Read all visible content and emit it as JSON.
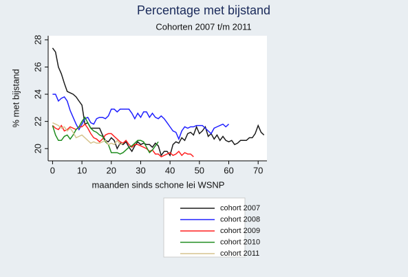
{
  "chart_data": {
    "type": "line",
    "title": "Percentage met bijstand",
    "subtitle": "Cohorten 2007 t/m 2011",
    "x_label": "maanden sinds schone lei WSNP",
    "y_label": "% met bijstand",
    "x": [
      0,
      1,
      2,
      3,
      4,
      5,
      6,
      7,
      8,
      9,
      10,
      11,
      12,
      13,
      14,
      15,
      16,
      17,
      18,
      19,
      20,
      21,
      22,
      23,
      24,
      25,
      26,
      27,
      28,
      29,
      30,
      31,
      32,
      33,
      34,
      35,
      36,
      37,
      38,
      39,
      40,
      41,
      42,
      43,
      44,
      45,
      46,
      47,
      48,
      49,
      50,
      51,
      52,
      53,
      54,
      55,
      56,
      57,
      58,
      59,
      60,
      61,
      62,
      63,
      64,
      65,
      66,
      67,
      68,
      69,
      70,
      71,
      72
    ],
    "xlim": [
      -1.5,
      73
    ],
    "xticks": [
      0,
      10,
      20,
      30,
      40,
      50,
      60,
      70
    ],
    "ylim": [
      19.1,
      28.3
    ],
    "yticks": [
      20,
      22,
      24,
      26,
      28
    ],
    "legend": "bottom",
    "series": [
      {
        "name": "cohort 2007",
        "color": "#1a1a1a",
        "values": [
          27.4,
          27.1,
          26,
          25.5,
          24.8,
          24.2,
          24.1,
          24,
          23.8,
          23.5,
          23.2,
          21.8,
          21.9,
          21.5,
          21.5,
          21.5,
          21.5,
          21,
          20.6,
          20.5,
          20.8,
          20.6,
          20,
          20.4,
          20.3,
          20.5,
          20.1,
          19.8,
          20.2,
          20.5,
          20.3,
          20.4,
          20.3,
          20.3,
          20.1,
          20.4,
          20.2,
          19.5,
          19.8,
          19.8,
          19.5,
          20.3,
          20.5,
          20.4,
          20.8,
          20.6,
          21.1,
          21.2,
          21,
          21.6,
          21.1,
          21.3,
          21.6,
          20.9,
          21.1,
          20.7,
          21,
          20.6,
          20.9,
          20.6,
          20.5,
          20.6,
          20.3,
          20.4,
          20.6,
          20.6,
          20.6,
          20.8,
          20.8,
          21.1,
          21.7,
          21.2,
          21
        ]
      },
      {
        "name": "cohort 2008",
        "color": "#1f1fff",
        "values": [
          24,
          24,
          23.5,
          23.7,
          23.8,
          23.5,
          22.8,
          22.3,
          21.8,
          21.4,
          21.8,
          22.2,
          22.3,
          21.9,
          21.8,
          22.2,
          22.3,
          22.3,
          22.2,
          22.4,
          22.9,
          22.9,
          22.7,
          22.9,
          22.9,
          22.9,
          22.9,
          22.6,
          22.2,
          22.6,
          22.3,
          22.7,
          22.7,
          22.3,
          22.6,
          22.3,
          22.2,
          22.4,
          22.2,
          21.9,
          21.6,
          21.3,
          21.2,
          20.7,
          21.3,
          21.6,
          21.5,
          21.6,
          21.6,
          21.7,
          21.7,
          21.7,
          21.5,
          21.3,
          21.1,
          21.5,
          21.6,
          21.7,
          21.8,
          21.6,
          21.8,
          null,
          null,
          null,
          null,
          null,
          null,
          null,
          null,
          null,
          null,
          null,
          null
        ]
      },
      {
        "name": "cohort 2009",
        "color": "#ff1f1f",
        "values": [
          21.7,
          21.5,
          21.4,
          21.7,
          21.3,
          21.4,
          21.6,
          21.5,
          21.4,
          21.6,
          21.6,
          21.8,
          21.5,
          21.1,
          20.8,
          20.7,
          20.5,
          20.7,
          21,
          21.1,
          21.1,
          20.9,
          20.7,
          20.5,
          20.4,
          20.6,
          20.3,
          20.1,
          20.3,
          20.3,
          20.2,
          20.1,
          20,
          19.8,
          19.9,
          19.6,
          19.6,
          19.4,
          19.5,
          19.6,
          19.7,
          19.5,
          19.6,
          19.8,
          19.5,
          19.7,
          19.6,
          19.6,
          19.4,
          null,
          null,
          null,
          null,
          null,
          null,
          null,
          null,
          null,
          null,
          null,
          null,
          null,
          null,
          null,
          null,
          null,
          null,
          null,
          null,
          null,
          null,
          null,
          null
        ]
      },
      {
        "name": "cohort 2010",
        "color": "#1e8c1e",
        "values": [
          21.7,
          21,
          20.6,
          20.6,
          20.9,
          21,
          20.7,
          21,
          21.4,
          21.6,
          22,
          22.3,
          21.9,
          21.5,
          21.3,
          21.2,
          21,
          20.9,
          20.5,
          20.3,
          19.7,
          19.7,
          19.7,
          19.6,
          19.7,
          19.9,
          20.1,
          20.2,
          20.4,
          20.6,
          20.6,
          20.5,
          20.1,
          19.7,
          19.9,
          20.2,
          20.5,
          null,
          null,
          null,
          null,
          null,
          null,
          null,
          null,
          null,
          null,
          null,
          null,
          null,
          null,
          null,
          null,
          null,
          null,
          null,
          null,
          null,
          null,
          null,
          null,
          null,
          null,
          null,
          null,
          null,
          null,
          null,
          null,
          null,
          null,
          null,
          null
        ]
      },
      {
        "name": "cohort 2011",
        "color": "#d6c48e",
        "values": [
          21.9,
          21.8,
          21.7,
          21.5,
          21.6,
          21.3,
          21.5,
          21.2,
          20.8,
          20.9,
          21,
          20.8,
          20.6,
          20.4,
          20.5,
          20.4,
          20.4,
          20.5,
          20.6,
          20.3,
          20.4,
          20.3,
          20.6,
          20.3,
          20.4,
          null,
          null,
          null,
          null,
          null,
          null,
          null,
          null,
          null,
          null,
          null,
          null,
          null,
          null,
          null,
          null,
          null,
          null,
          null,
          null,
          null,
          null,
          null,
          null,
          null,
          null,
          null,
          null,
          null,
          null,
          null,
          null,
          null,
          null,
          null,
          null,
          null,
          null,
          null,
          null,
          null,
          null,
          null,
          null,
          null,
          null,
          null,
          null
        ]
      }
    ]
  }
}
